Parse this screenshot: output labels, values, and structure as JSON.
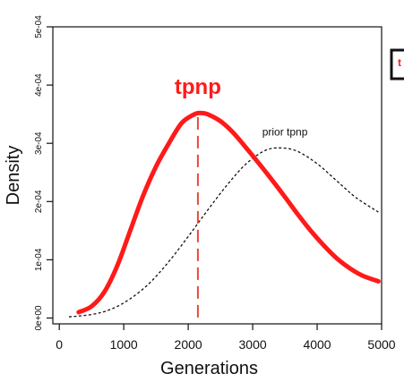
{
  "chart_data": {
    "type": "line",
    "xlabel": "Generations",
    "ylabel": "Density",
    "xlim": [
      -100,
      5000
    ],
    "ylim": [
      -1e-05,
      0.0005
    ],
    "x_ticks": [
      0,
      1000,
      2000,
      3000,
      4000,
      5000
    ],
    "x_tick_labels": [
      "0",
      "1000",
      "2000",
      "3000",
      "4000",
      "5000"
    ],
    "y_ticks": [
      0,
      0.0001,
      0.0002,
      0.0003,
      0.0004,
      0.0005
    ],
    "y_tick_labels": [
      "0e+00",
      "1e-04",
      "2e-04",
      "3e-04",
      "4e-04",
      "5e-04"
    ],
    "grid": false,
    "series": [
      {
        "name": "tpnp",
        "color": "#ff1a1a",
        "style": "solid",
        "x": [
          300,
          500,
          700,
          900,
          1100,
          1300,
          1500,
          1700,
          1900,
          2100,
          2200,
          2300,
          2500,
          2700,
          2900,
          3100,
          3300,
          3500,
          3700,
          3900,
          4100,
          4300,
          4500,
          4700,
          4950
        ],
        "y": [
          1e-05,
          2e-05,
          4.5e-05,
          9e-05,
          0.00015,
          0.00021,
          0.00026,
          0.0003,
          0.000335,
          0.00035,
          0.000352,
          0.00035,
          0.000338,
          0.000318,
          0.000292,
          0.000265,
          0.000237,
          0.000208,
          0.000178,
          0.00015,
          0.000125,
          0.000103,
          8.6e-05,
          7.3e-05,
          6.3e-05
        ]
      },
      {
        "name": "prior tpnp",
        "color": "#111111",
        "style": "dashed",
        "x": [
          150,
          500,
          800,
          1100,
          1400,
          1700,
          2000,
          2300,
          2600,
          2900,
          3200,
          3450,
          3700,
          4000,
          4300,
          4600,
          4950
        ],
        "y": [
          2e-06,
          6e-06,
          1.5e-05,
          3.3e-05,
          6e-05,
          9.7e-05,
          0.00014,
          0.000185,
          0.000228,
          0.000265,
          0.000288,
          0.000292,
          0.000286,
          0.000265,
          0.000236,
          0.000207,
          0.000182
        ]
      }
    ],
    "vline": {
      "x": 2150,
      "color": "#e84a3a",
      "style": "dashed"
    },
    "annotations": [
      {
        "text": "tpnp",
        "x": 2150,
        "y": 0.000385,
        "color": "#ff1a1a"
      },
      {
        "text": "prior tpnp",
        "x": 3500,
        "y": 0.000313,
        "color": "#111111"
      }
    ]
  },
  "legend_fragment": {
    "text": "t",
    "color": "#ff1a1a"
  }
}
